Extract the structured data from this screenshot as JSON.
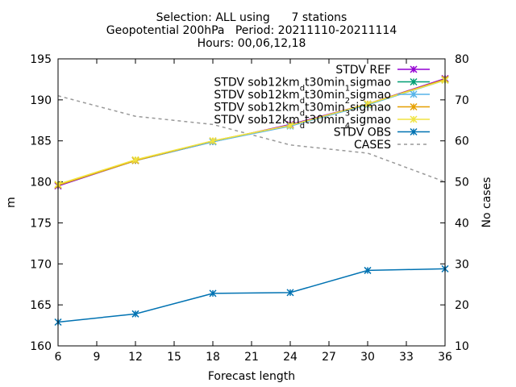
{
  "chart_data": {
    "type": "line",
    "title_lines": [
      "Selection: ALL using      7 stations",
      "Geopotential 200hPa   Period: 20211110-20211114",
      "Hours: 00,06,12,18"
    ],
    "xlabel": "Forecast length",
    "ylabel": "m",
    "y2label": "No cases",
    "xlim": [
      6,
      36
    ],
    "ylim": [
      160,
      195
    ],
    "y2lim": [
      10,
      80
    ],
    "xticks": [
      6,
      9,
      12,
      15,
      18,
      21,
      24,
      27,
      30,
      33,
      36
    ],
    "yticks": [
      160,
      165,
      170,
      175,
      180,
      185,
      190,
      195
    ],
    "y2ticks": [
      10,
      20,
      30,
      40,
      50,
      60,
      70,
      80
    ],
    "x": [
      6,
      12,
      18,
      24,
      30,
      36
    ],
    "series": [
      {
        "name": "STDV REF",
        "label_parts": [
          [
            "STDV REF",
            "n"
          ]
        ],
        "color": "#9400d3",
        "axis": "y1",
        "dash": "solid",
        "marker": "x",
        "values": [
          179.5,
          182.6,
          184.9,
          187.0,
          189.5,
          192.6
        ]
      },
      {
        "name": "STDV sob12km_dt30min_1sigmao",
        "label_parts": [
          [
            "STDV sob12km",
            "n"
          ],
          [
            "d",
            "sub"
          ],
          [
            "t30min",
            "n"
          ],
          [
            "1",
            "sub"
          ],
          [
            "sigmao",
            "n"
          ]
        ],
        "color": "#009e73",
        "axis": "y1",
        "dash": "solid",
        "marker": "x",
        "values": [
          179.6,
          182.6,
          184.9,
          186.9,
          189.4,
          192.5
        ]
      },
      {
        "name": "STDV sob12km_dt30min_2sigmao",
        "label_parts": [
          [
            "STDV sob12km",
            "n"
          ],
          [
            "d",
            "sub"
          ],
          [
            "t30min",
            "n"
          ],
          [
            "2",
            "sub"
          ],
          [
            "sigmao",
            "n"
          ]
        ],
        "color": "#56b4e9",
        "axis": "y1",
        "dash": "solid",
        "marker": "x",
        "values": [
          179.6,
          182.6,
          184.9,
          186.8,
          189.4,
          192.4
        ]
      },
      {
        "name": "STDV sob12km_dt30min_3sigmao",
        "label_parts": [
          [
            "STDV sob12km",
            "n"
          ],
          [
            "d",
            "sub"
          ],
          [
            "t30min",
            "n"
          ],
          [
            "3",
            "sub"
          ],
          [
            "sigmao",
            "n"
          ]
        ],
        "color": "#e69f00",
        "axis": "y1",
        "dash": "solid",
        "marker": "x",
        "values": [
          179.6,
          182.6,
          185.0,
          186.9,
          189.5,
          192.5
        ]
      },
      {
        "name": "STDV sob12km_dt30min_4sigmao",
        "label_parts": [
          [
            "STDV sob12km",
            "n"
          ],
          [
            "d",
            "sub"
          ],
          [
            "t30min",
            "n"
          ],
          [
            "4",
            "sub"
          ],
          [
            "sigmao",
            "n"
          ]
        ],
        "color": "#f0e442",
        "axis": "y1",
        "dash": "solid",
        "marker": "x",
        "values": [
          179.7,
          182.7,
          185.0,
          186.9,
          189.5,
          192.4
        ]
      },
      {
        "name": "STDV OBS",
        "label_parts": [
          [
            "STDV OBS",
            "n"
          ]
        ],
        "color": "#0072b2",
        "axis": "y1",
        "dash": "solid",
        "marker": "x",
        "values": [
          162.9,
          163.9,
          166.4,
          166.5,
          169.2,
          169.4
        ]
      },
      {
        "name": "CASES",
        "label_parts": [
          [
            "CASES",
            "n"
          ]
        ],
        "color": "#999999",
        "axis": "y2",
        "dash": "dashed",
        "marker": "none",
        "x": [
          6,
          12,
          18,
          24,
          30,
          36
        ],
        "values": [
          71,
          66,
          64,
          59,
          57,
          50
        ]
      }
    ]
  }
}
